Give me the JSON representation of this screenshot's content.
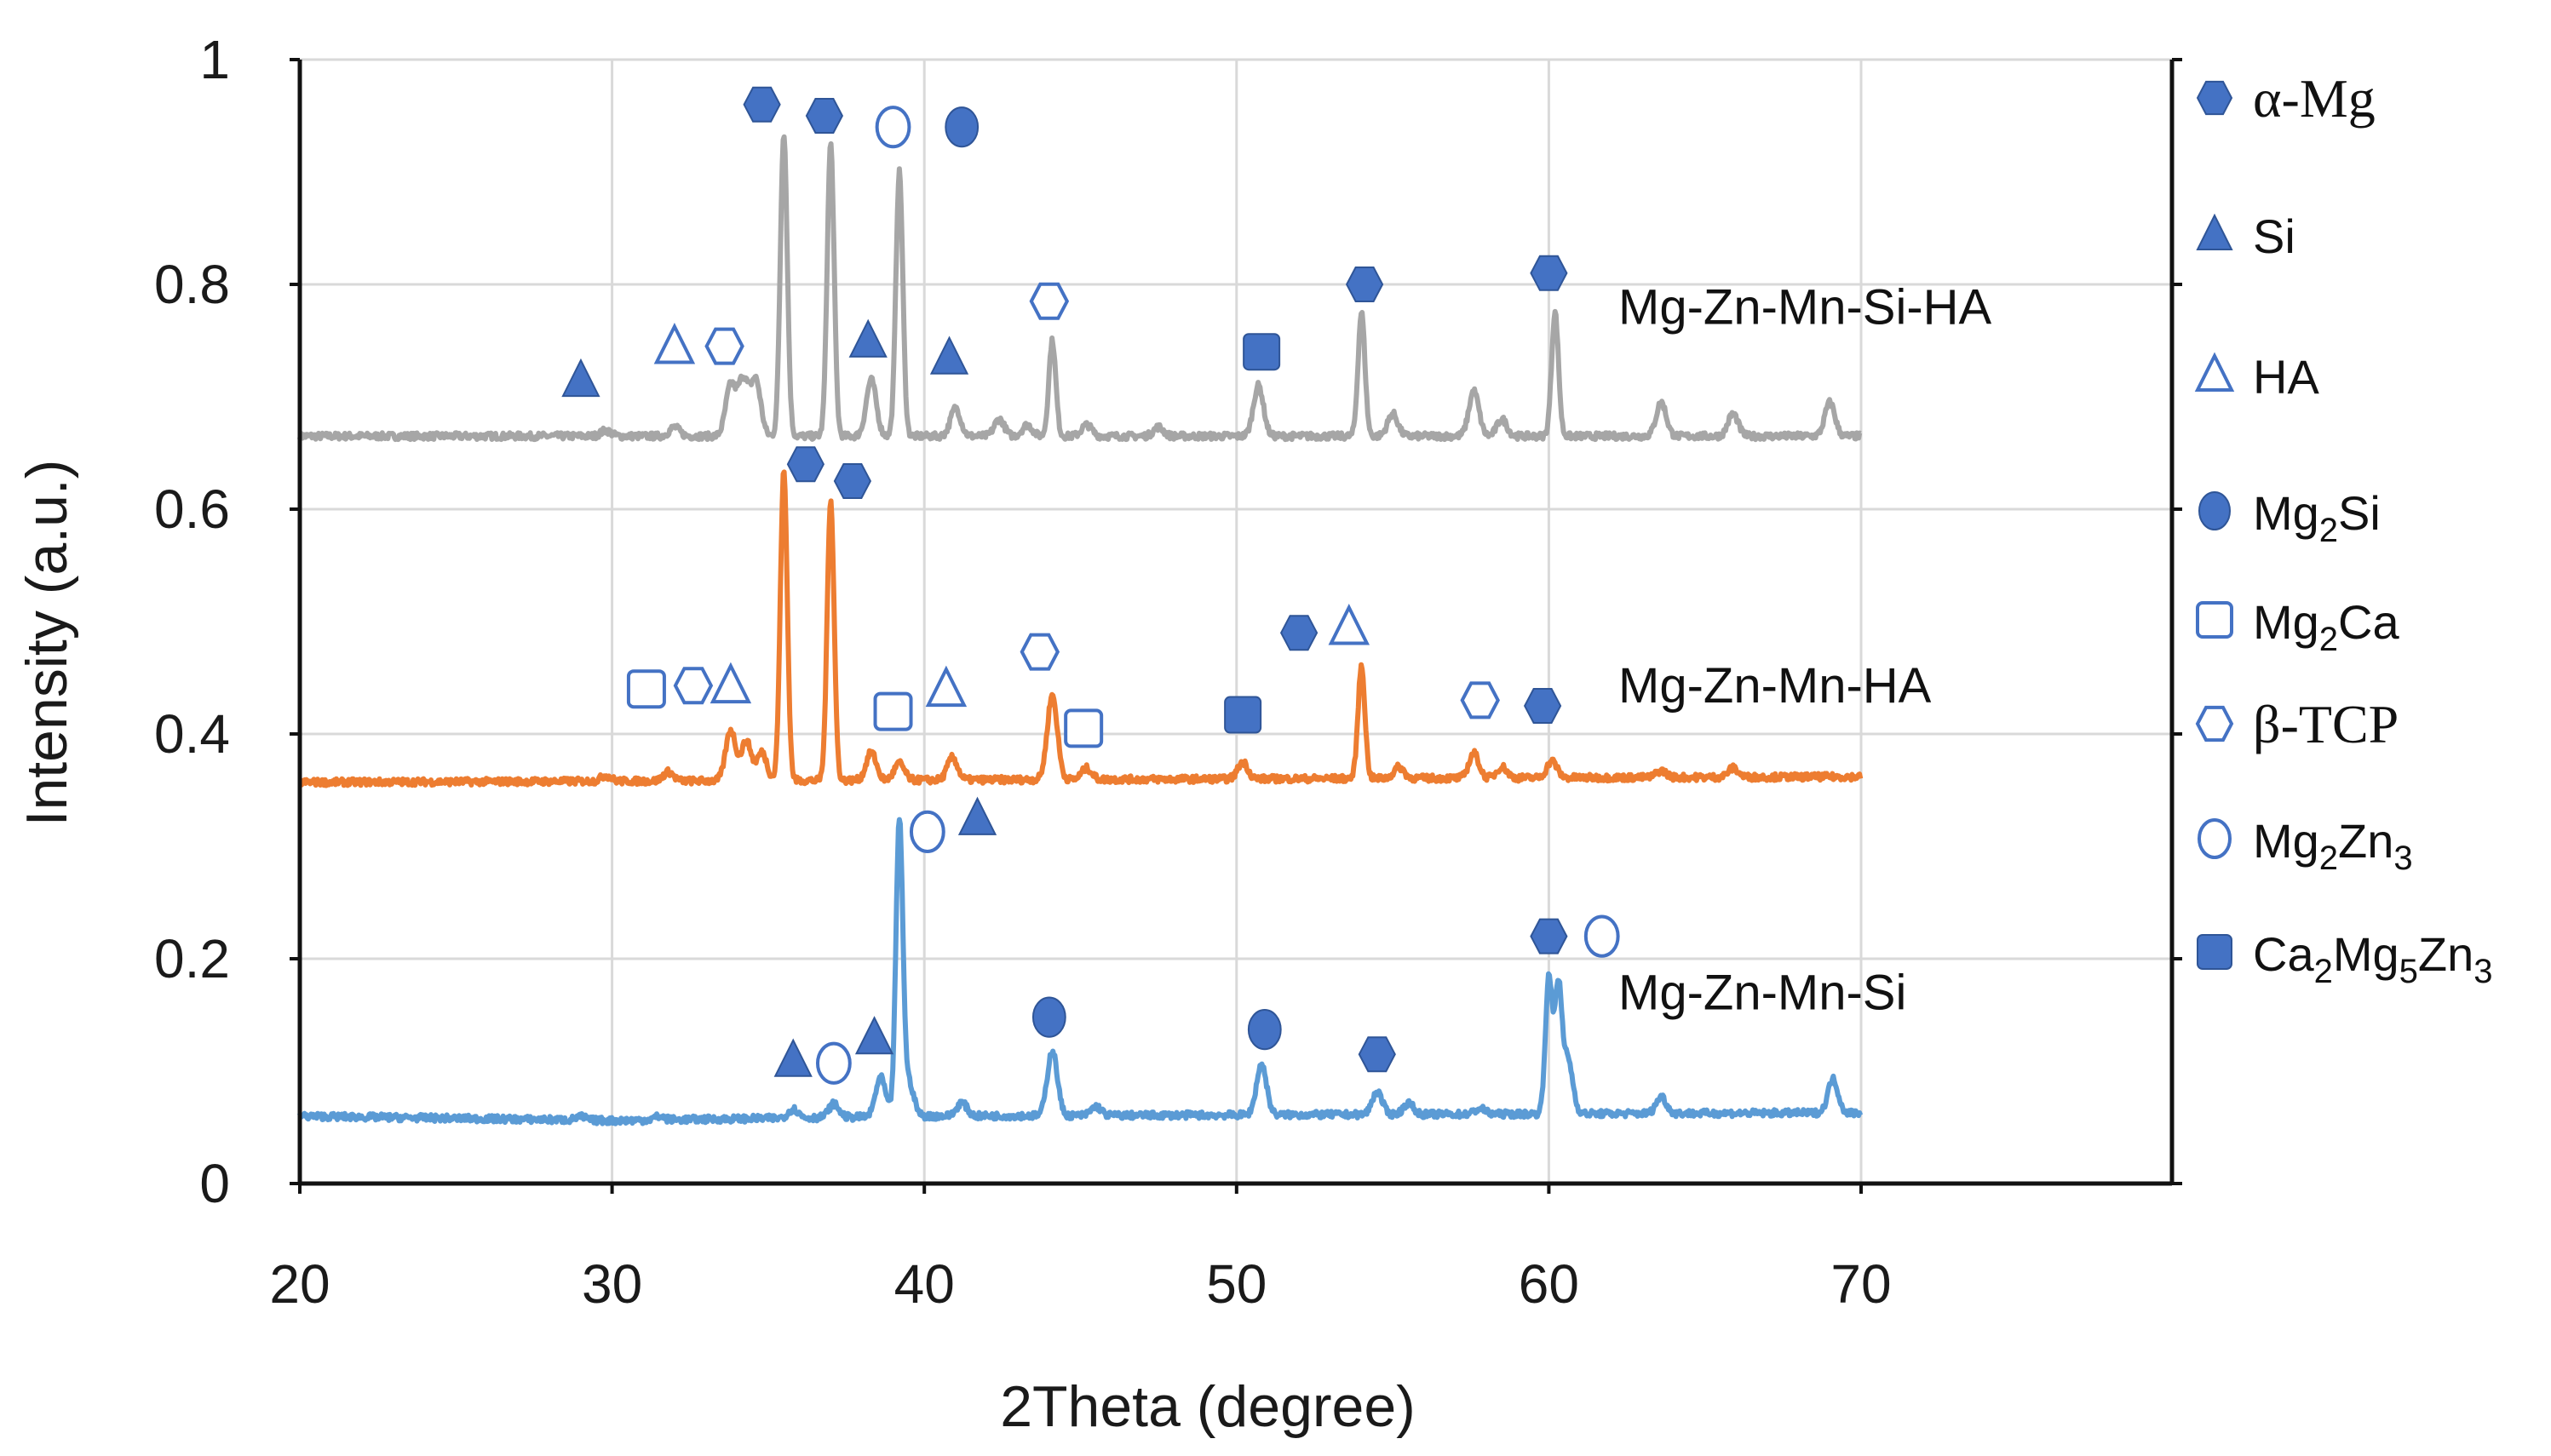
{
  "chart_data": {
    "type": "line",
    "xlabel": "2Theta (degree)",
    "ylabel": "Intensity (a.u.)",
    "xlim": [
      20,
      70
    ],
    "ylim": [
      0,
      1
    ],
    "xticks": [
      "20",
      "30",
      "40",
      "50",
      "60",
      "70"
    ],
    "yticks": [
      "0",
      "0.2",
      "0.4",
      "0.6",
      "0.8",
      "1"
    ],
    "grid": "horizontal",
    "legend_placement": "right",
    "series": [
      {
        "name": "Mg-Zn-Mn-Si-HA",
        "color": "#a6a6a6",
        "baseline": [
          [
            20,
            0.665
          ],
          [
            70,
            0.665
          ]
        ],
        "peaks": [
          [
            29.8,
            0.005
          ],
          [
            32.0,
            0.008
          ],
          [
            33.8,
            0.045
          ],
          [
            34.2,
            0.05
          ],
          [
            34.6,
            0.05
          ],
          [
            35.5,
            0.27
          ],
          [
            37.0,
            0.26
          ],
          [
            38.3,
            0.05
          ],
          [
            39.2,
            0.235
          ],
          [
            41.0,
            0.025
          ],
          [
            42.4,
            0.015
          ],
          [
            43.3,
            0.01
          ],
          [
            44.1,
            0.085
          ],
          [
            45.2,
            0.01
          ],
          [
            47.5,
            0.008
          ],
          [
            50.7,
            0.045
          ],
          [
            54.0,
            0.11
          ],
          [
            55.0,
            0.02
          ],
          [
            57.6,
            0.04
          ],
          [
            58.5,
            0.015
          ],
          [
            60.2,
            0.11
          ],
          [
            63.6,
            0.03
          ],
          [
            65.9,
            0.02
          ],
          [
            69.0,
            0.03
          ]
        ]
      },
      {
        "name": "Mg-Zn-Mn-HA",
        "color": "#ed7d31",
        "baseline": [
          [
            20,
            0.357
          ],
          [
            70,
            0.362
          ]
        ],
        "peaks": [
          [
            29.8,
            0.005
          ],
          [
            31.8,
            0.008
          ],
          [
            33.8,
            0.045
          ],
          [
            34.3,
            0.035
          ],
          [
            34.8,
            0.025
          ],
          [
            35.5,
            0.275
          ],
          [
            37.0,
            0.25
          ],
          [
            38.3,
            0.025
          ],
          [
            39.2,
            0.015
          ],
          [
            40.9,
            0.02
          ],
          [
            44.1,
            0.075
          ],
          [
            45.2,
            0.01
          ],
          [
            50.2,
            0.015
          ],
          [
            54.0,
            0.1
          ],
          [
            55.2,
            0.01
          ],
          [
            57.6,
            0.022
          ],
          [
            58.5,
            0.01
          ],
          [
            60.1,
            0.015
          ],
          [
            63.6,
            0.006
          ],
          [
            65.9,
            0.008
          ]
        ]
      },
      {
        "name": "Mg-Zn-Mn-Si",
        "color": "#5b9bd5",
        "baseline": [
          [
            20,
            0.06
          ],
          [
            30,
            0.056
          ],
          [
            40,
            0.06
          ],
          [
            70,
            0.063
          ]
        ],
        "peaks": [
          [
            29.0,
            0.003
          ],
          [
            31.5,
            0.003
          ],
          [
            35.8,
            0.008
          ],
          [
            37.1,
            0.012
          ],
          [
            38.6,
            0.035
          ],
          [
            39.2,
            0.26
          ],
          [
            39.5,
            0.03
          ],
          [
            41.2,
            0.012
          ],
          [
            44.1,
            0.058
          ],
          [
            45.5,
            0.008
          ],
          [
            50.8,
            0.045
          ],
          [
            54.5,
            0.02
          ],
          [
            55.5,
            0.01
          ],
          [
            57.8,
            0.005
          ],
          [
            60.0,
            0.12
          ],
          [
            60.3,
            0.11
          ],
          [
            60.6,
            0.05
          ],
          [
            63.6,
            0.015
          ],
          [
            69.1,
            0.03
          ]
        ]
      }
    ],
    "markers": [
      {
        "shape": "hexagon-filled",
        "x": 34.8,
        "y": 0.96
      },
      {
        "shape": "hexagon-filled",
        "x": 36.8,
        "y": 0.95
      },
      {
        "shape": "circle-open",
        "x": 39.0,
        "y": 0.94
      },
      {
        "shape": "circle-filled",
        "x": 41.2,
        "y": 0.94
      },
      {
        "shape": "triangle-filled",
        "x": 29.0,
        "y": 0.715
      },
      {
        "shape": "triangle-open",
        "x": 32.0,
        "y": 0.745
      },
      {
        "shape": "hexagon-open",
        "x": 33.6,
        "y": 0.745
      },
      {
        "shape": "triangle-filled",
        "x": 38.2,
        "y": 0.75
      },
      {
        "shape": "triangle-filled",
        "x": 40.8,
        "y": 0.735
      },
      {
        "shape": "hexagon-open",
        "x": 44.0,
        "y": 0.785
      },
      {
        "shape": "square-filled",
        "x": 50.8,
        "y": 0.74
      },
      {
        "shape": "hexagon-filled",
        "x": 54.1,
        "y": 0.8
      },
      {
        "shape": "hexagon-filled",
        "x": 60.0,
        "y": 0.81
      },
      {
        "shape": "hexagon-filled",
        "x": 36.2,
        "y": 0.64
      },
      {
        "shape": "hexagon-filled",
        "x": 37.7,
        "y": 0.625
      },
      {
        "shape": "square-open",
        "x": 31.1,
        "y": 0.44
      },
      {
        "shape": "hexagon-open",
        "x": 32.6,
        "y": 0.443
      },
      {
        "shape": "triangle-open",
        "x": 33.8,
        "y": 0.443
      },
      {
        "shape": "hexagon-open",
        "x": 43.7,
        "y": 0.473
      },
      {
        "shape": "square-open",
        "x": 39.0,
        "y": 0.42
      },
      {
        "shape": "triangle-open",
        "x": 40.7,
        "y": 0.44
      },
      {
        "shape": "square-open",
        "x": 45.1,
        "y": 0.405
      },
      {
        "shape": "square-filled",
        "x": 50.2,
        "y": 0.417
      },
      {
        "shape": "hexagon-filled",
        "x": 52.0,
        "y": 0.49
      },
      {
        "shape": "triangle-open",
        "x": 53.6,
        "y": 0.495
      },
      {
        "shape": "hexagon-open",
        "x": 57.8,
        "y": 0.43
      },
      {
        "shape": "hexagon-filled",
        "x": 59.8,
        "y": 0.425
      },
      {
        "shape": "circle-open",
        "x": 40.1,
        "y": 0.313
      },
      {
        "shape": "triangle-filled",
        "x": 41.7,
        "y": 0.325
      },
      {
        "shape": "triangle-filled",
        "x": 35.8,
        "y": 0.11
      },
      {
        "shape": "circle-open",
        "x": 37.1,
        "y": 0.107
      },
      {
        "shape": "triangle-filled",
        "x": 38.4,
        "y": 0.13
      },
      {
        "shape": "circle-filled",
        "x": 44.0,
        "y": 0.148
      },
      {
        "shape": "circle-filled",
        "x": 50.9,
        "y": 0.137
      },
      {
        "shape": "hexagon-filled",
        "x": 54.5,
        "y": 0.115
      },
      {
        "shape": "hexagon-filled",
        "x": 60.0,
        "y": 0.22
      },
      {
        "shape": "circle-open",
        "x": 61.7,
        "y": 0.22
      }
    ],
    "legend": [
      {
        "shape": "hexagon-filled",
        "label": "α-Mg",
        "font": "serif"
      },
      {
        "shape": "triangle-filled",
        "label": "Si",
        "font": "sans"
      },
      {
        "shape": "triangle-open",
        "label": "HA",
        "font": "sans"
      },
      {
        "shape": "circle-filled",
        "label": "Mg2Si",
        "font": "sans",
        "parts": [
          [
            "Mg",
            ""
          ],
          [
            "2",
            "sub"
          ],
          [
            "Si",
            ""
          ]
        ]
      },
      {
        "shape": "square-open",
        "label": "Mg2Ca",
        "font": "sans",
        "parts": [
          [
            "Mg",
            ""
          ],
          [
            "2",
            "sub"
          ],
          [
            "Ca",
            ""
          ]
        ]
      },
      {
        "shape": "hexagon-open",
        "label": "β-TCP",
        "font": "serif"
      },
      {
        "shape": "circle-open",
        "label": "Mg2Zn3",
        "font": "sans",
        "parts": [
          [
            "Mg",
            ""
          ],
          [
            "2",
            "sub"
          ],
          [
            "Zn",
            ""
          ],
          [
            "3",
            "sub"
          ]
        ]
      },
      {
        "shape": "square-filled",
        "label": "Ca2Mg5Zn3",
        "font": "sans",
        "parts": [
          [
            "Ca",
            ""
          ],
          [
            "2",
            "sub"
          ],
          [
            "Mg",
            ""
          ],
          [
            "5",
            "sub"
          ],
          [
            "Zn",
            ""
          ],
          [
            "3",
            "sub"
          ]
        ]
      }
    ],
    "marker_color": "#4472c4"
  }
}
